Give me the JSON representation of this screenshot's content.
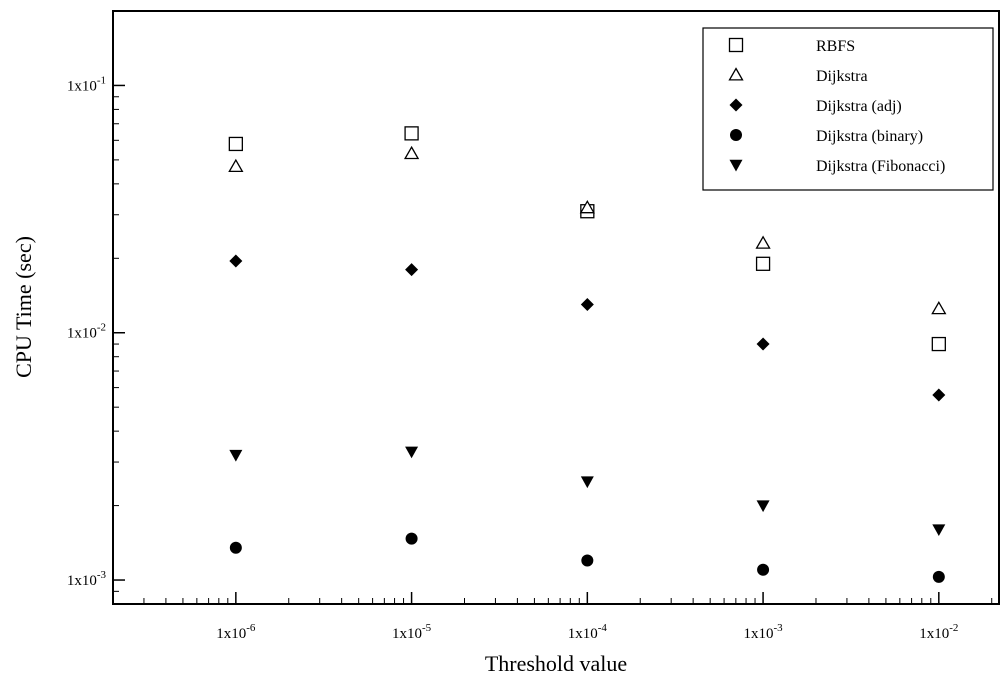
{
  "chart_data": {
    "type": "scatter",
    "xlabel": "Threshold value",
    "ylabel": "CPU Time (sec)",
    "xscale": "log",
    "yscale": "log",
    "xlim": [
      2e-07,
      0.022
    ],
    "ylim": [
      0.0008,
      0.2
    ],
    "x": [
      1e-06,
      1e-05,
      0.0001,
      0.001,
      0.01
    ],
    "xticks": [
      {
        "mant": "1x10",
        "exp": "-6"
      },
      {
        "mant": "1x10",
        "exp": "-5"
      },
      {
        "mant": "1x10",
        "exp": "-4"
      },
      {
        "mant": "1x10",
        "exp": "-3"
      },
      {
        "mant": "1x10",
        "exp": "-2"
      }
    ],
    "yticks": [
      {
        "value": 0.1,
        "mant": "1x10",
        "exp": "-1"
      },
      {
        "value": 0.01,
        "mant": "1x10",
        "exp": "-2"
      },
      {
        "value": 0.001,
        "mant": "1x10",
        "exp": "-3"
      }
    ],
    "grid": false,
    "legend_position": "top-right",
    "series": [
      {
        "name": "RBFS",
        "marker": "square-open",
        "values": [
          0.058,
          0.064,
          0.031,
          0.019,
          0.009
        ]
      },
      {
        "name": "Dijkstra",
        "marker": "triangle-open",
        "values": [
          0.047,
          0.053,
          0.032,
          0.023,
          0.0125
        ]
      },
      {
        "name": "Dijkstra (adj)",
        "marker": "diamond-filled",
        "values": [
          0.0195,
          0.018,
          0.013,
          0.009,
          0.0056
        ]
      },
      {
        "name": "Dijkstra (binary)",
        "marker": "circle-filled",
        "values": [
          0.00135,
          0.00147,
          0.0012,
          0.0011,
          0.00103
        ]
      },
      {
        "name": "Dijkstra (Fibonacci)",
        "marker": "triangle-down-filled",
        "values": [
          0.0032,
          0.0033,
          0.0025,
          0.002,
          0.0016
        ]
      }
    ]
  }
}
